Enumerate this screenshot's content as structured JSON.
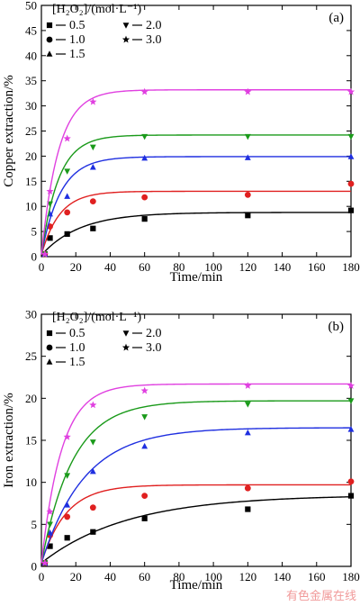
{
  "chart_data": [
    {
      "type": "line",
      "panel_label": "(a)",
      "xlabel": "Time/min",
      "ylabel": "Copper extraction/%",
      "xlim": [
        0,
        180
      ],
      "ylim": [
        0,
        50
      ],
      "xticks": [
        0,
        20,
        40,
        60,
        80,
        100,
        120,
        140,
        160,
        180
      ],
      "yticks": [
        0,
        5,
        10,
        15,
        20,
        25,
        30,
        35,
        40,
        45,
        50
      ],
      "legend_title": "[H₂O₂]/(mol·L⁻¹)",
      "legend_placement": "top-left",
      "series": [
        {
          "name": "0.5",
          "marker": "square",
          "color": "#000000",
          "points": [
            [
              2,
              0.5
            ],
            [
              5,
              3.7
            ],
            [
              15,
              4.5
            ],
            [
              30,
              5.6
            ],
            [
              60,
              7.5
            ],
            [
              120,
              8.2
            ],
            [
              180,
              9.2
            ]
          ],
          "fit": {
            "a": 8.5,
            "k": 0.045,
            "c": 0.3
          }
        },
        {
          "name": "1.0",
          "marker": "circle",
          "color": "#e02020",
          "points": [
            [
              2,
              0.5
            ],
            [
              5,
              6.0
            ],
            [
              15,
              8.8
            ],
            [
              30,
              11.0
            ],
            [
              60,
              11.8
            ],
            [
              120,
              12.3
            ],
            [
              180,
              14.5
            ]
          ],
          "fit": {
            "a": 12.6,
            "k": 0.095,
            "c": 0.4
          }
        },
        {
          "name": "1.5",
          "marker": "triangle-up",
          "color": "#1f2fe0",
          "points": [
            [
              2,
              0.5
            ],
            [
              5,
              8.5
            ],
            [
              15,
              12.0
            ],
            [
              30,
              17.8
            ],
            [
              60,
              19.6
            ],
            [
              120,
              19.7
            ],
            [
              180,
              19.9
            ]
          ],
          "fit": {
            "a": 19.5,
            "k": 0.09,
            "c": 0.4
          }
        },
        {
          "name": "2.0",
          "marker": "triangle-down",
          "color": "#1a9a1a",
          "points": [
            [
              2,
              0.5
            ],
            [
              5,
              10.5
            ],
            [
              15,
              17.0
            ],
            [
              30,
              21.8
            ],
            [
              60,
              23.9
            ],
            [
              120,
              23.9
            ],
            [
              180,
              23.9
            ]
          ],
          "fit": {
            "a": 23.8,
            "k": 0.1,
            "c": 0.4
          }
        },
        {
          "name": "3.0",
          "marker": "star",
          "color": "#e040e0",
          "points": [
            [
              2,
              0.5
            ],
            [
              5,
              13.0
            ],
            [
              15,
              23.5
            ],
            [
              30,
              30.8
            ],
            [
              60,
              32.8
            ],
            [
              120,
              32.8
            ],
            [
              180,
              32.8
            ]
          ],
          "fit": {
            "a": 32.8,
            "k": 0.1,
            "c": 0.4
          }
        }
      ]
    },
    {
      "type": "line",
      "panel_label": "(b)",
      "xlabel": "Time/min",
      "ylabel": "Iron extraction/%",
      "xlim": [
        0,
        180
      ],
      "ylim": [
        0,
        30
      ],
      "xticks": [
        0,
        20,
        40,
        60,
        80,
        100,
        120,
        140,
        160,
        180
      ],
      "yticks": [
        0,
        5,
        10,
        15,
        20,
        25,
        30
      ],
      "legend_title": "[H₂O₂]/(mol·L⁻¹)",
      "legend_placement": "top-left",
      "series": [
        {
          "name": "0.5",
          "marker": "square",
          "color": "#000000",
          "points": [
            [
              2,
              0.4
            ],
            [
              5,
              2.4
            ],
            [
              15,
              3.4
            ],
            [
              30,
              4.1
            ],
            [
              60,
              5.7
            ],
            [
              120,
              6.8
            ],
            [
              180,
              8.4
            ]
          ],
          "fit": {
            "a": 8.1,
            "k": 0.02,
            "c": 0.4
          }
        },
        {
          "name": "1.0",
          "marker": "circle",
          "color": "#e02020",
          "points": [
            [
              2,
              0.4
            ],
            [
              5,
              3.7
            ],
            [
              15,
              5.9
            ],
            [
              30,
              7.0
            ],
            [
              60,
              8.4
            ],
            [
              120,
              9.3
            ],
            [
              180,
              10.1
            ]
          ],
          "fit": {
            "a": 9.3,
            "k": 0.07,
            "c": 0.4
          }
        },
        {
          "name": "1.5",
          "marker": "triangle-up",
          "color": "#1f2fe0",
          "points": [
            [
              2,
              0.4
            ],
            [
              5,
              4.0
            ],
            [
              15,
              7.3
            ],
            [
              30,
              11.3
            ],
            [
              60,
              14.3
            ],
            [
              120,
              15.9
            ],
            [
              180,
              16.3
            ]
          ],
          "fit": {
            "a": 16.1,
            "k": 0.04,
            "c": 0.4
          }
        },
        {
          "name": "2.0",
          "marker": "triangle-down",
          "color": "#1a9a1a",
          "points": [
            [
              2,
              0.4
            ],
            [
              5,
              5.0
            ],
            [
              15,
              10.8
            ],
            [
              30,
              14.8
            ],
            [
              60,
              17.8
            ],
            [
              120,
              19.3
            ],
            [
              180,
              19.7
            ]
          ],
          "fit": {
            "a": 19.3,
            "k": 0.055,
            "c": 0.4
          }
        },
        {
          "name": "3.0",
          "marker": "star",
          "color": "#e040e0",
          "points": [
            [
              2,
              0.4
            ],
            [
              5,
              6.5
            ],
            [
              15,
              15.4
            ],
            [
              30,
              19.2
            ],
            [
              60,
              20.9
            ],
            [
              120,
              21.5
            ],
            [
              180,
              21.5
            ]
          ],
          "fit": {
            "a": 21.3,
            "k": 0.085,
            "c": 0.4
          }
        }
      ]
    }
  ],
  "watermark": "有色金属在线"
}
